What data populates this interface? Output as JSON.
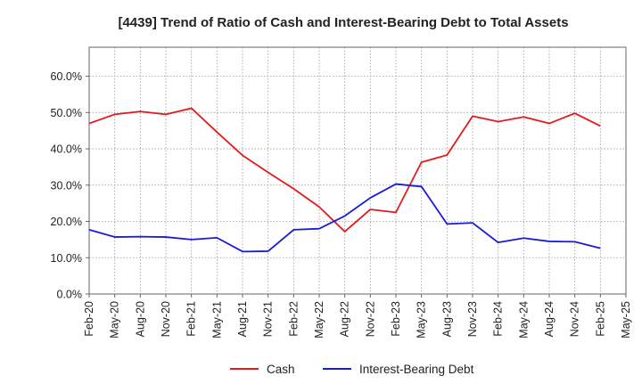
{
  "chart_data": {
    "type": "line",
    "title": "[4439]  Trend of Ratio of Cash and Interest-Bearing Debt to Total Assets",
    "xlabel": "",
    "ylabel": "",
    "x": [
      "Feb-20",
      "May-20",
      "Aug-20",
      "Nov-20",
      "Feb-21",
      "May-21",
      "Aug-21",
      "Nov-21",
      "Feb-22",
      "May-22",
      "Aug-22",
      "Nov-22",
      "Feb-23",
      "May-23",
      "Aug-23",
      "Nov-23",
      "Feb-24",
      "May-24",
      "Aug-24",
      "Nov-24",
      "Feb-25",
      "May-25"
    ],
    "ylim": [
      0,
      68
    ],
    "yticks": [
      0,
      10,
      20,
      30,
      40,
      50,
      60
    ],
    "ytick_labels": [
      "0.0%",
      "10.0%",
      "20.0%",
      "30.0%",
      "40.0%",
      "50.0%",
      "60.0%"
    ],
    "grid": true,
    "legend_position": "bottom-center",
    "series": [
      {
        "name": "Cash",
        "color": "#e31a1c",
        "values": [
          47.0,
          49.5,
          50.3,
          49.5,
          51.2,
          44.6,
          38.2,
          33.5,
          29.0,
          24.0,
          17.2,
          23.3,
          22.5,
          36.3,
          38.3,
          49.0,
          47.5,
          48.8,
          47.0,
          49.8,
          46.3,
          null
        ]
      },
      {
        "name": "Interest-Bearing Debt",
        "color": "#1a1adb",
        "values": [
          17.7,
          15.7,
          15.8,
          15.7,
          15.0,
          15.5,
          11.7,
          11.8,
          17.7,
          18.0,
          21.5,
          26.5,
          30.3,
          29.6,
          19.3,
          19.6,
          14.2,
          15.4,
          14.5,
          14.4,
          12.6,
          null
        ]
      }
    ]
  }
}
